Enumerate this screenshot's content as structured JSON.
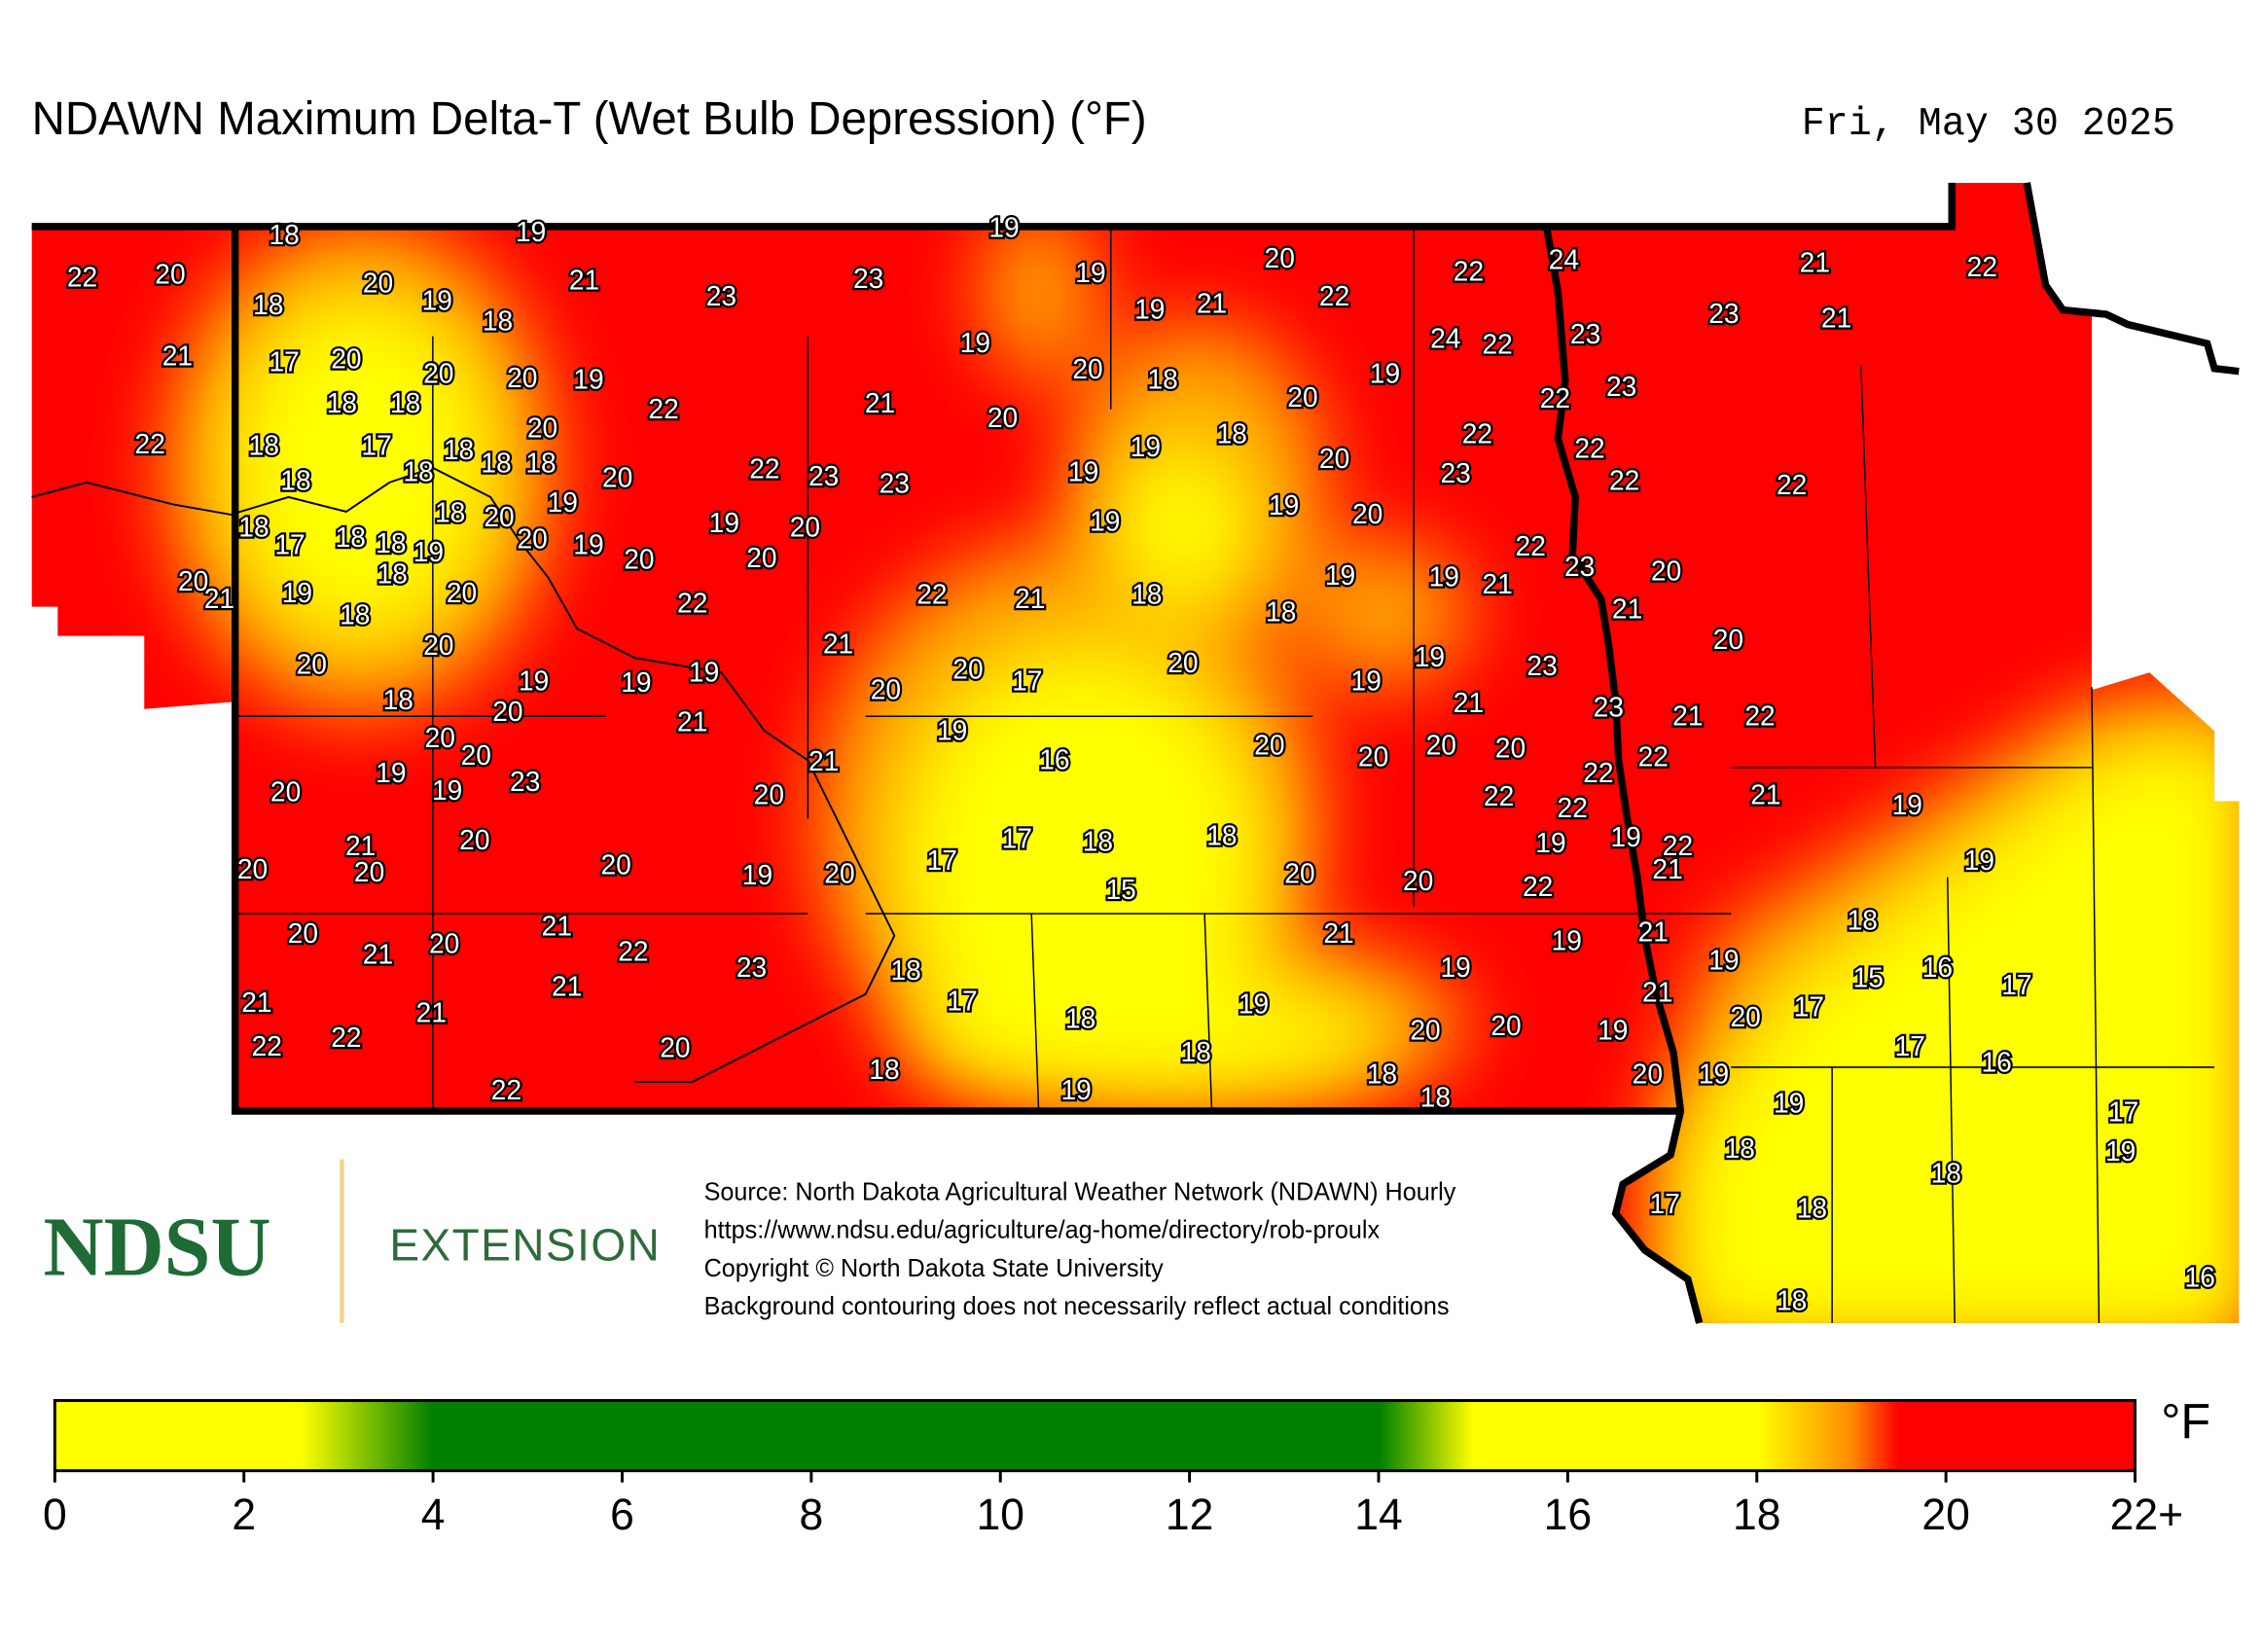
{
  "title": "NDAWN Maximum Delta-T (Wet Bulb Depression) (°F)",
  "date": "Fri, May 30 2025",
  "stations": [
    18,
    19,
    19,
    22,
    20,
    20,
    18,
    19,
    21,
    18,
    23,
    23,
    19,
    20,
    19,
    21,
    22,
    22,
    24,
    21,
    22,
    23,
    21,
    21,
    17,
    20,
    20,
    20,
    19,
    19,
    20,
    18,
    24,
    22,
    23,
    19,
    23,
    22,
    18,
    18,
    22,
    21,
    20,
    20,
    22,
    18,
    17,
    18,
    20,
    18,
    18,
    18,
    18,
    20,
    22,
    23,
    23,
    19,
    19,
    18,
    20,
    22,
    22,
    23,
    22,
    22,
    19,
    18,
    20,
    18,
    17,
    18,
    18,
    19,
    20,
    19,
    19,
    20,
    19,
    19,
    20,
    20,
    20,
    22,
    23,
    20,
    20,
    21,
    19,
    18,
    20,
    18,
    22,
    22,
    21,
    18,
    18,
    19,
    19,
    21,
    21,
    20,
    20,
    21,
    20,
    19,
    19,
    19,
    20,
    20,
    17,
    20,
    19,
    19,
    23,
    18,
    20,
    21,
    21,
    23,
    21,
    22,
    20,
    20,
    19,
    16,
    20,
    20,
    20,
    20,
    21,
    19,
    19,
    23,
    20,
    20,
    22,
    22,
    22,
    22,
    21,
    19,
    20,
    21,
    20,
    20,
    20,
    19,
    20,
    17,
    17,
    18,
    18,
    15,
    20,
    20,
    19,
    19,
    22,
    21,
    22,
    19,
    20,
    21,
    21,
    20,
    22,
    23,
    18,
    21,
    19,
    19,
    21,
    18,
    19,
    16,
    15,
    17,
    21,
    21,
    21,
    17,
    18,
    19,
    21,
    20,
    17,
    22,
    22,
    20,
    20,
    20,
    19,
    17,
    18,
    18,
    16,
    22,
    19,
    18,
    18,
    20,
    19,
    19,
    17,
    18,
    19,
    18,
    17,
    18,
    16,
    18
  ],
  "source": [
    "Source: North Dakota Agricultural Weather Network (NDAWN) Hourly",
    "https://www.ndsu.edu/agriculture/ag-home/directory/rob-proulx",
    "Copyright © North Dakota State University",
    "Background contouring does not necessarily reflect actual conditions"
  ],
  "logo": {
    "name": "NDSU",
    "unit": "EXTENSION"
  },
  "colorbar": {
    "range": [
      0,
      22
    ],
    "ticks": [
      0,
      2,
      4,
      6,
      8,
      10,
      12,
      14,
      16,
      18,
      20,
      {
        "value": 22,
        "label": "22+"
      }
    ],
    "unit": "°F",
    "stops": [
      {
        "value": 0,
        "color": "#ffff00"
      },
      {
        "value": 2.6,
        "color": "#ffff00"
      },
      {
        "value": 4,
        "color": "#008000"
      },
      {
        "value": 14,
        "color": "#008000"
      },
      {
        "value": 15,
        "color": "#ffff00"
      },
      {
        "value": 18,
        "color": "#ffff00"
      },
      {
        "value": 19,
        "color": "#ff8c00"
      },
      {
        "value": 19.5,
        "color": "#ff0000"
      },
      {
        "value": 22,
        "color": "#ff0000"
      }
    ]
  }
}
